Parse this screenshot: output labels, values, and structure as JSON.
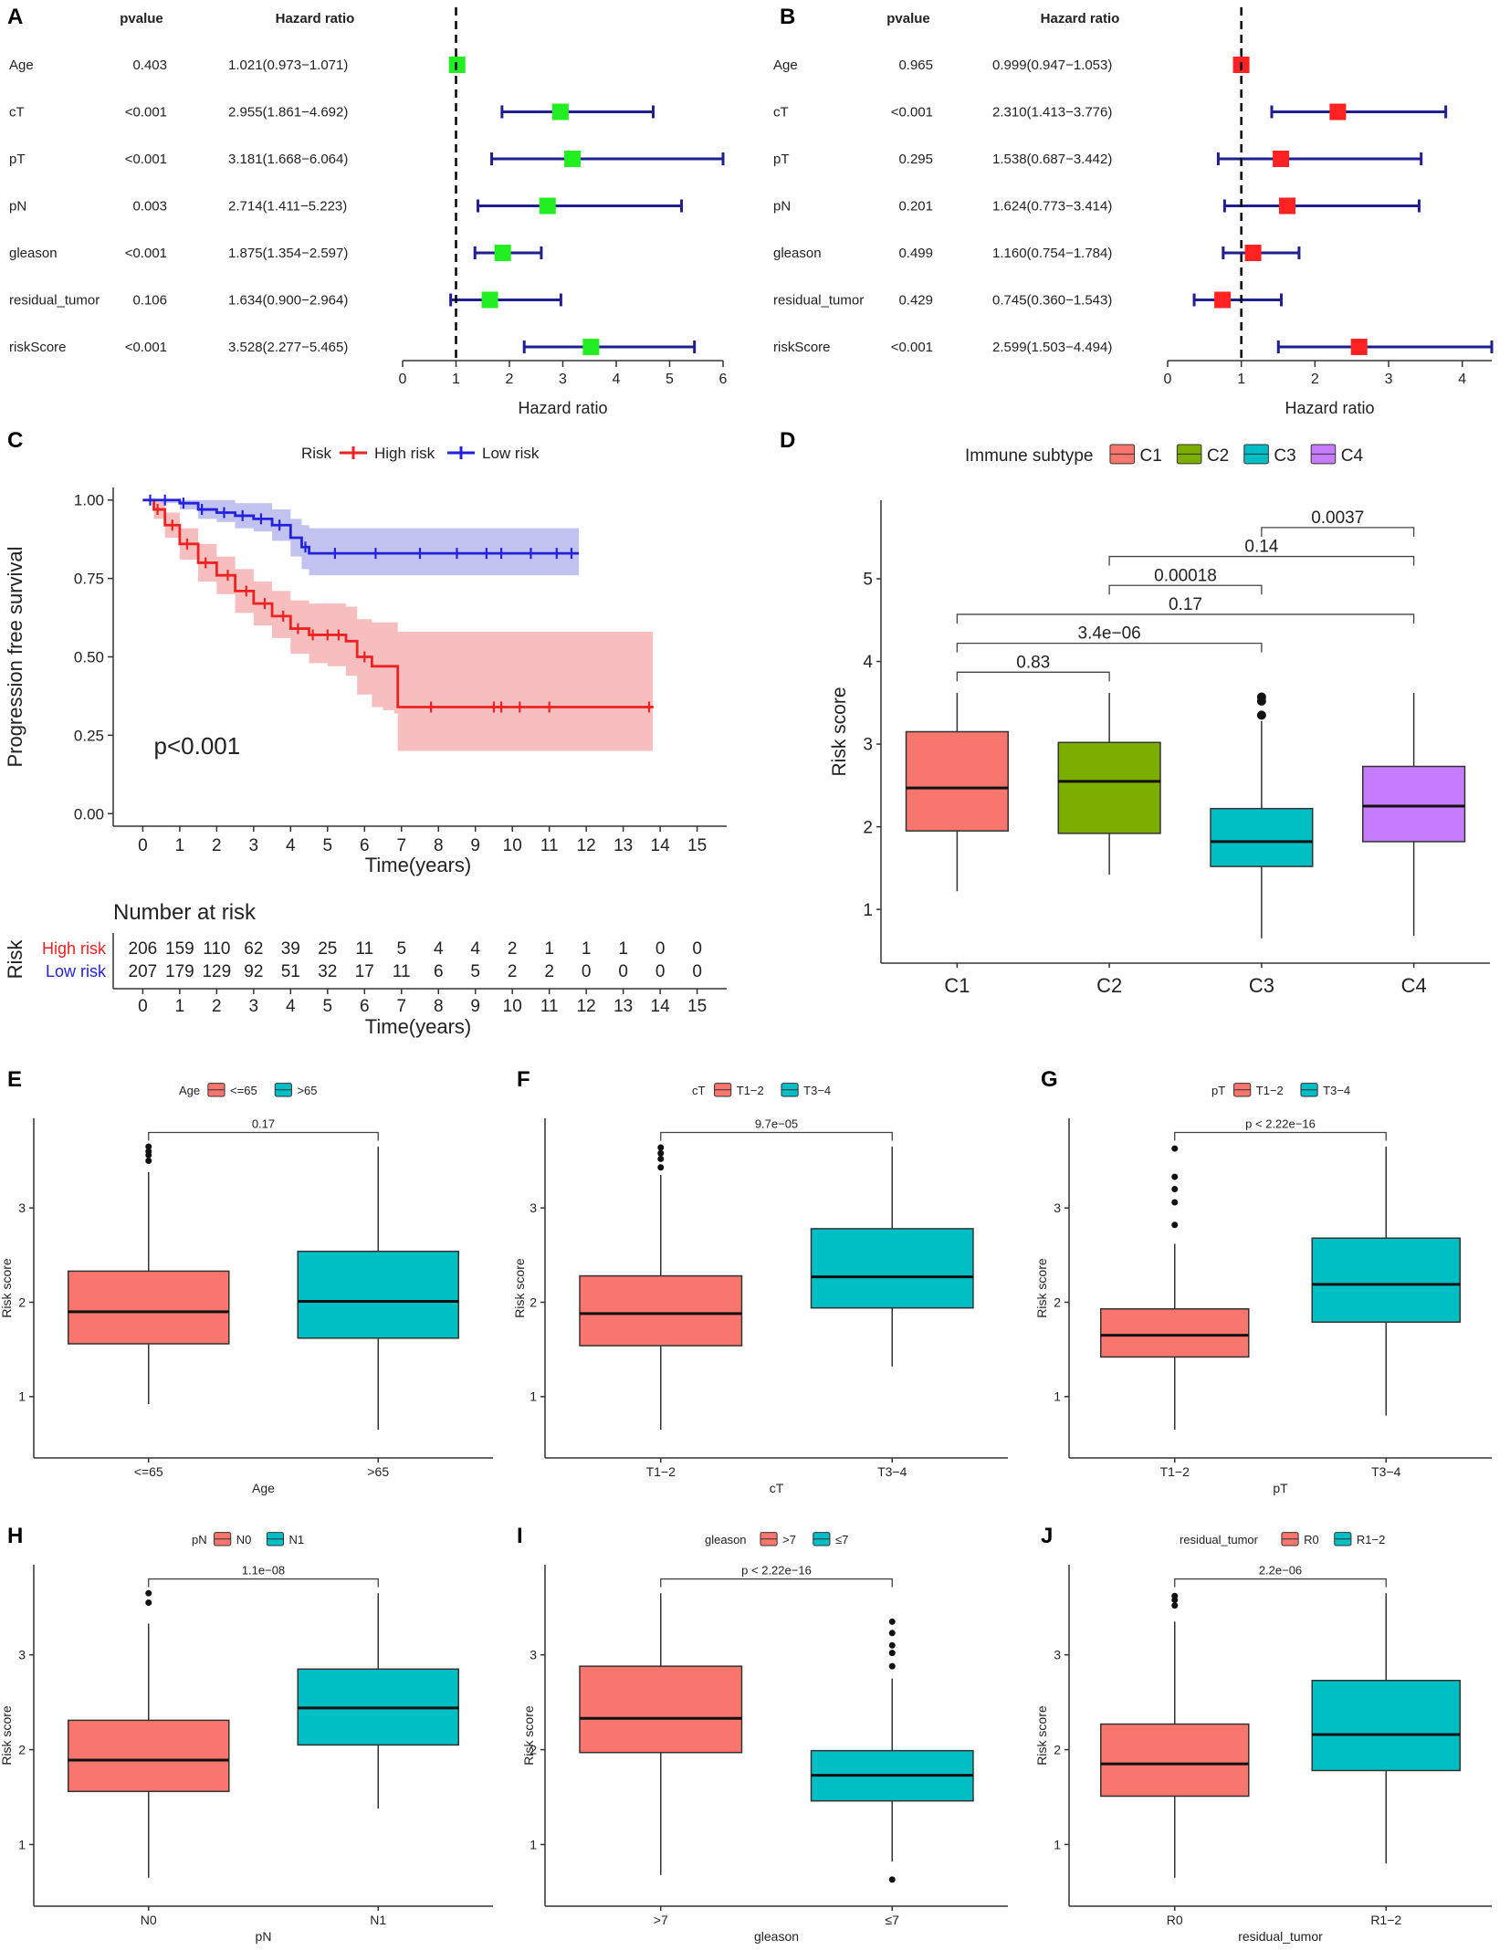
{
  "figure": {
    "panel_labels": [
      "A",
      "B",
      "C",
      "D",
      "E",
      "F",
      "G",
      "H",
      "I",
      "J"
    ]
  },
  "colors": {
    "navy": "#1f1f8f",
    "green_square": "#22ee22",
    "red_square": "#ff2222",
    "km_high": "#ee2222",
    "km_high_band": "#f5b3b3",
    "km_low": "#2222dd",
    "km_low_band": "#b7b7ef",
    "c1": "#f8766d",
    "c2": "#7cae00",
    "c3": "#00bfc4",
    "c4": "#c77cff",
    "group_a": "#f8766d",
    "group_b": "#00bfc4",
    "axis": "#333333",
    "text": "#222222"
  },
  "chart_data": [
    {
      "panel": "A",
      "type": "forest",
      "col_pvalue": "pvalue",
      "col_hr": "Hazard ratio",
      "xlabel": "Hazard ratio",
      "xlim": [
        0,
        6
      ],
      "xticks": [
        "0",
        "1",
        "2",
        "3",
        "4",
        "5",
        "6"
      ],
      "reference_line": 1,
      "marker_color_key": "green_square",
      "rows": [
        {
          "label": "Age",
          "pvalue": "0.403",
          "hr_text": "1.021(0.973−1.071)",
          "hr": 1.021,
          "lo": 0.973,
          "hi": 1.071
        },
        {
          "label": "cT",
          "pvalue": "<0.001",
          "hr_text": "2.955(1.861−4.692)",
          "hr": 2.955,
          "lo": 1.861,
          "hi": 4.692
        },
        {
          "label": "pT",
          "pvalue": "<0.001",
          "hr_text": "3.181(1.668−6.064)",
          "hr": 3.181,
          "lo": 1.668,
          "hi": 6.064
        },
        {
          "label": "pN",
          "pvalue": "0.003",
          "hr_text": "2.714(1.411−5.223)",
          "hr": 2.714,
          "lo": 1.411,
          "hi": 5.223
        },
        {
          "label": "gleason",
          "pvalue": "<0.001",
          "hr_text": "1.875(1.354−2.597)",
          "hr": 1.875,
          "lo": 1.354,
          "hi": 2.597
        },
        {
          "label": "residual_tumor",
          "pvalue": "0.106",
          "hr_text": "1.634(0.900−2.964)",
          "hr": 1.634,
          "lo": 0.9,
          "hi": 2.964
        },
        {
          "label": "riskScore",
          "pvalue": "<0.001",
          "hr_text": "3.528(2.277−5.465)",
          "hr": 3.528,
          "lo": 2.277,
          "hi": 5.465
        }
      ]
    },
    {
      "panel": "B",
      "type": "forest",
      "col_pvalue": "pvalue",
      "col_hr": "Hazard ratio",
      "xlabel": "Hazard ratio",
      "xlim": [
        0,
        4.4
      ],
      "xticks": [
        "0",
        "1",
        "2",
        "3",
        "4"
      ],
      "reference_line": 1,
      "marker_color_key": "red_square",
      "rows": [
        {
          "label": "Age",
          "pvalue": "0.965",
          "hr_text": "0.999(0.947−1.053)",
          "hr": 0.999,
          "lo": 0.947,
          "hi": 1.053
        },
        {
          "label": "cT",
          "pvalue": "<0.001",
          "hr_text": "2.310(1.413−3.776)",
          "hr": 2.31,
          "lo": 1.413,
          "hi": 3.776
        },
        {
          "label": "pT",
          "pvalue": "0.295",
          "hr_text": "1.538(0.687−3.442)",
          "hr": 1.538,
          "lo": 0.687,
          "hi": 3.442
        },
        {
          "label": "pN",
          "pvalue": "0.201",
          "hr_text": "1.624(0.773−3.414)",
          "hr": 1.624,
          "lo": 0.773,
          "hi": 3.414
        },
        {
          "label": "gleason",
          "pvalue": "0.499",
          "hr_text": "1.160(0.754−1.784)",
          "hr": 1.16,
          "lo": 0.754,
          "hi": 1.784
        },
        {
          "label": "residual_tumor",
          "pvalue": "0.429",
          "hr_text": "0.745(0.360−1.543)",
          "hr": 0.745,
          "lo": 0.36,
          "hi": 1.543
        },
        {
          "label": "riskScore",
          "pvalue": "<0.001",
          "hr_text": "2.599(1.503−4.494)",
          "hr": 2.599,
          "lo": 1.503,
          "hi": 4.494
        }
      ]
    },
    {
      "panel": "C",
      "type": "line",
      "legend_title": "Risk",
      "xlabel": "Time(years)",
      "ylabel": "Progression free survival",
      "xlim": [
        -0.8,
        15.8
      ],
      "ylim": [
        -0.04,
        1.04
      ],
      "xticks": [
        "0",
        "1",
        "2",
        "3",
        "4",
        "5",
        "6",
        "7",
        "8",
        "9",
        "10",
        "11",
        "12",
        "13",
        "14",
        "15"
      ],
      "yticks": [
        "0.00",
        "0.25",
        "0.50",
        "0.75",
        "1.00"
      ],
      "pvalue_text": "p<0.001",
      "series": [
        {
          "name": "High risk",
          "color_key": "km_high",
          "band_key": "km_high_band",
          "x": [
            0,
            0.3,
            0.6,
            1.0,
            1.5,
            2.0,
            2.5,
            3.0,
            3.5,
            4.0,
            4.5,
            5.0,
            5.5,
            5.8,
            6.2,
            6.5,
            6.8,
            6.9,
            10.0,
            13.8
          ],
          "y": [
            1.0,
            0.97,
            0.92,
            0.86,
            0.8,
            0.76,
            0.71,
            0.67,
            0.63,
            0.59,
            0.57,
            0.57,
            0.55,
            0.5,
            0.47,
            0.47,
            0.47,
            0.34,
            0.34,
            0.34
          ],
          "lower": [
            1.0,
            0.94,
            0.88,
            0.81,
            0.74,
            0.7,
            0.64,
            0.6,
            0.56,
            0.51,
            0.48,
            0.47,
            0.44,
            0.38,
            0.34,
            0.33,
            0.32,
            0.2,
            0.2,
            0.2
          ],
          "upper": [
            1.0,
            1.0,
            0.96,
            0.91,
            0.86,
            0.82,
            0.78,
            0.74,
            0.71,
            0.68,
            0.67,
            0.67,
            0.66,
            0.62,
            0.61,
            0.61,
            0.61,
            0.58,
            0.58,
            0.58
          ],
          "censor_x": [
            0.4,
            0.8,
            1.2,
            1.7,
            2.3,
            2.8,
            3.3,
            3.8,
            4.2,
            4.6,
            5.0,
            5.3,
            6.0,
            7.8,
            9.5,
            9.7,
            10.2,
            11.0,
            13.7
          ]
        },
        {
          "name": "Low risk",
          "color_key": "km_low",
          "band_key": "km_low_band",
          "x": [
            0,
            0.5,
            1.0,
            1.5,
            2.0,
            2.5,
            3.0,
            3.5,
            4.0,
            4.3,
            4.5,
            11.8
          ],
          "y": [
            1.0,
            1.0,
            0.99,
            0.97,
            0.96,
            0.95,
            0.94,
            0.92,
            0.88,
            0.85,
            0.83,
            0.83
          ],
          "lower": [
            1.0,
            0.99,
            0.97,
            0.94,
            0.93,
            0.91,
            0.9,
            0.87,
            0.82,
            0.78,
            0.76,
            0.76
          ],
          "upper": [
            1.0,
            1.0,
            1.0,
            1.0,
            1.0,
            0.99,
            0.99,
            0.97,
            0.94,
            0.92,
            0.91,
            0.91
          ],
          "censor_x": [
            0.2,
            0.6,
            1.1,
            1.6,
            2.2,
            2.7,
            3.2,
            3.7,
            4.4,
            5.2,
            6.3,
            7.5,
            8.5,
            9.3,
            9.7,
            10.5,
            11.2,
            11.6
          ]
        }
      ],
      "risk_table": {
        "title": "Number at risk",
        "ylabel": "Risk",
        "xlabel": "Time(years)",
        "rows": [
          {
            "name": "High risk",
            "color_key": "km_high",
            "values": [
              "206",
              "159",
              "110",
              "62",
              "39",
              "25",
              "11",
              "5",
              "4",
              "4",
              "2",
              "1",
              "1",
              "1",
              "0",
              "0"
            ]
          },
          {
            "name": "Low risk",
            "color_key": "km_low",
            "values": [
              "207",
              "179",
              "129",
              "92",
              "51",
              "32",
              "17",
              "11",
              "6",
              "5",
              "2",
              "2",
              "0",
              "0",
              "0",
              "0"
            ]
          }
        ]
      }
    },
    {
      "panel": "D",
      "type": "box",
      "legend_title": "Immune subtype",
      "ylabel": "Risk score",
      "xlabel": "",
      "ylim": [
        0.35,
        5.95
      ],
      "yticks": [
        "1",
        "2",
        "3",
        "4",
        "5"
      ],
      "groups": [
        {
          "name": "C1",
          "color_key": "c1",
          "min": 1.22,
          "q1": 1.95,
          "median": 2.47,
          "q3": 3.15,
          "max": 3.62,
          "outliers": []
        },
        {
          "name": "C2",
          "color_key": "c2",
          "min": 1.42,
          "q1": 1.92,
          "median": 2.55,
          "q3": 3.02,
          "max": 3.62,
          "outliers": []
        },
        {
          "name": "C3",
          "color_key": "c3",
          "min": 0.65,
          "q1": 1.52,
          "median": 1.82,
          "q3": 2.22,
          "max": 3.28,
          "outliers": [
            3.35,
            3.52,
            3.57
          ]
        },
        {
          "name": "C4",
          "color_key": "c4",
          "min": 0.68,
          "q1": 1.82,
          "median": 2.25,
          "q3": 2.73,
          "max": 3.62,
          "outliers": []
        }
      ],
      "comparisons": [
        {
          "from": 0,
          "to": 1,
          "y": 3.87,
          "label": "0.83"
        },
        {
          "from": 0,
          "to": 2,
          "y": 4.22,
          "label": "3.4e−06"
        },
        {
          "from": 0,
          "to": 3,
          "y": 4.57,
          "label": "0.17"
        },
        {
          "from": 1,
          "to": 2,
          "y": 4.92,
          "label": "0.00018"
        },
        {
          "from": 1,
          "to": 3,
          "y": 5.27,
          "label": "0.14"
        },
        {
          "from": 2,
          "to": 3,
          "y": 5.62,
          "label": "0.0037"
        }
      ]
    },
    {
      "panel": "E",
      "type": "box",
      "legend_title": "Age",
      "xlabel": "Age",
      "ylabel": "Risk score",
      "ylim": [
        0.35,
        3.95
      ],
      "yticks": [
        "1",
        "2",
        "3"
      ],
      "groups": [
        {
          "name": "<=65",
          "color_key": "group_a",
          "min": 0.92,
          "q1": 1.56,
          "median": 1.9,
          "q3": 2.33,
          "max": 3.38,
          "outliers": [
            3.5,
            3.56,
            3.6,
            3.65
          ]
        },
        {
          "name": ">65",
          "color_key": "group_b",
          "min": 0.65,
          "q1": 1.62,
          "median": 2.01,
          "q3": 2.54,
          "max": 3.65,
          "outliers": []
        }
      ],
      "comparisons": [
        {
          "from": 0,
          "to": 1,
          "y": 3.8,
          "label": "0.17"
        }
      ]
    },
    {
      "panel": "F",
      "type": "box",
      "legend_title": "cT",
      "xlabel": "cT",
      "ylabel": "Risk score",
      "ylim": [
        0.35,
        3.95
      ],
      "yticks": [
        "1",
        "2",
        "3"
      ],
      "groups": [
        {
          "name": "T1−2",
          "color_key": "group_a",
          "min": 0.65,
          "q1": 1.54,
          "median": 1.88,
          "q3": 2.28,
          "max": 3.35,
          "outliers": [
            3.43,
            3.52,
            3.58,
            3.64
          ]
        },
        {
          "name": "T3−4",
          "color_key": "group_b",
          "min": 1.32,
          "q1": 1.94,
          "median": 2.27,
          "q3": 2.78,
          "max": 3.65,
          "outliers": []
        }
      ],
      "comparisons": [
        {
          "from": 0,
          "to": 1,
          "y": 3.8,
          "label": "9.7e−05"
        }
      ]
    },
    {
      "panel": "G",
      "type": "box",
      "legend_title": "pT",
      "xlabel": "pT",
      "ylabel": "Risk score",
      "ylim": [
        0.35,
        3.95
      ],
      "yticks": [
        "1",
        "2",
        "3"
      ],
      "groups": [
        {
          "name": "T1−2",
          "color_key": "group_a",
          "min": 0.65,
          "q1": 1.42,
          "median": 1.65,
          "q3": 1.93,
          "max": 2.62,
          "outliers": [
            2.82,
            3.06,
            3.2,
            3.33,
            3.63
          ]
        },
        {
          "name": "T3−4",
          "color_key": "group_b",
          "min": 0.8,
          "q1": 1.79,
          "median": 2.19,
          "q3": 2.68,
          "max": 3.65,
          "outliers": []
        }
      ],
      "comparisons": [
        {
          "from": 0,
          "to": 1,
          "y": 3.8,
          "label": "p < 2.22e−16"
        }
      ]
    },
    {
      "panel": "H",
      "type": "box",
      "legend_title": "pN",
      "xlabel": "pN",
      "ylabel": "Risk score",
      "ylim": [
        0.35,
        3.95
      ],
      "yticks": [
        "1",
        "2",
        "3"
      ],
      "groups": [
        {
          "name": "N0",
          "color_key": "group_a",
          "min": 0.65,
          "q1": 1.56,
          "median": 1.89,
          "q3": 2.31,
          "max": 3.33,
          "outliers": [
            3.55,
            3.65
          ]
        },
        {
          "name": "N1",
          "color_key": "group_b",
          "min": 1.38,
          "q1": 2.05,
          "median": 2.44,
          "q3": 2.85,
          "max": 3.65,
          "outliers": []
        }
      ],
      "comparisons": [
        {
          "from": 0,
          "to": 1,
          "y": 3.8,
          "label": "1.1e−08"
        }
      ]
    },
    {
      "panel": "I",
      "type": "box",
      "legend_title": "gleason",
      "xlabel": "gleason",
      "ylabel": "Risk score",
      "ylim": [
        0.35,
        3.95
      ],
      "yticks": [
        "1",
        "2",
        "3"
      ],
      "groups": [
        {
          "name": ">7",
          "color_key": "group_a",
          "min": 0.68,
          "q1": 1.97,
          "median": 2.33,
          "q3": 2.88,
          "max": 3.65,
          "outliers": []
        },
        {
          "name": "≤7",
          "color_key": "group_b",
          "min": 0.82,
          "q1": 1.46,
          "median": 1.73,
          "q3": 1.99,
          "max": 2.75,
          "outliers": [
            0.63,
            2.88,
            3.02,
            3.1,
            3.23,
            3.35
          ]
        }
      ],
      "comparisons": [
        {
          "from": 0,
          "to": 1,
          "y": 3.8,
          "label": "p < 2.22e−16"
        }
      ]
    },
    {
      "panel": "J",
      "type": "box",
      "legend_title": "residual_tumor",
      "xlabel": "residual_tumor",
      "ylabel": "Risk score",
      "ylim": [
        0.35,
        3.95
      ],
      "yticks": [
        "1",
        "2",
        "3"
      ],
      "groups": [
        {
          "name": "R0",
          "color_key": "group_a",
          "min": 0.65,
          "q1": 1.51,
          "median": 1.85,
          "q3": 2.27,
          "max": 3.35,
          "outliers": [
            3.52,
            3.58,
            3.62
          ]
        },
        {
          "name": "R1−2",
          "color_key": "group_b",
          "min": 0.8,
          "q1": 1.78,
          "median": 2.16,
          "q3": 2.73,
          "max": 3.65,
          "outliers": []
        }
      ],
      "comparisons": [
        {
          "from": 0,
          "to": 1,
          "y": 3.8,
          "label": "2.2e−06"
        }
      ]
    }
  ]
}
